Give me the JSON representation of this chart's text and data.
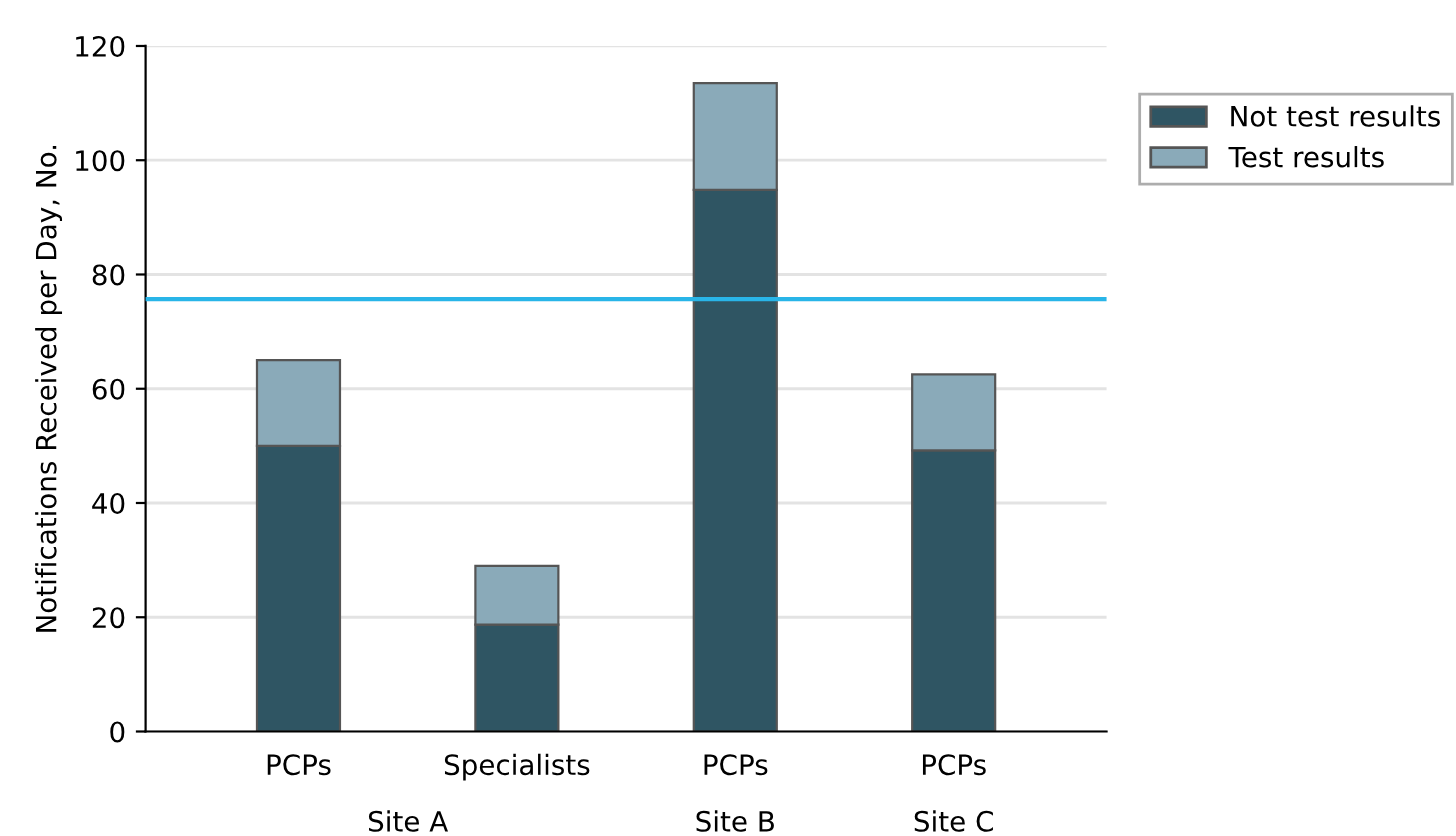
{
  "chart_data": {
    "type": "bar",
    "stacked": true,
    "ylabel": "Notifications Received per Day, No.",
    "categories": [
      "PCPs",
      "Specialists",
      "PCPs",
      "PCPs"
    ],
    "series": [
      {
        "name": "Not test results",
        "color": "#2f5563",
        "values": [
          50,
          18.7,
          94.8,
          49.2
        ]
      },
      {
        "name": "Test results",
        "color": "#8aaab9",
        "values": [
          15,
          10.3,
          18.7,
          13.3
        ]
      }
    ],
    "ylim": [
      0,
      120
    ],
    "yticks": [
      0,
      20,
      40,
      60,
      80,
      100,
      120
    ],
    "grid": "y",
    "legend": "top right",
    "ref_lines": [
      {
        "axis": "y",
        "value": 75.7,
        "color": "#29b5e8"
      }
    ],
    "annotations": [
      "Site A",
      "Site B",
      "Site C"
    ]
  }
}
